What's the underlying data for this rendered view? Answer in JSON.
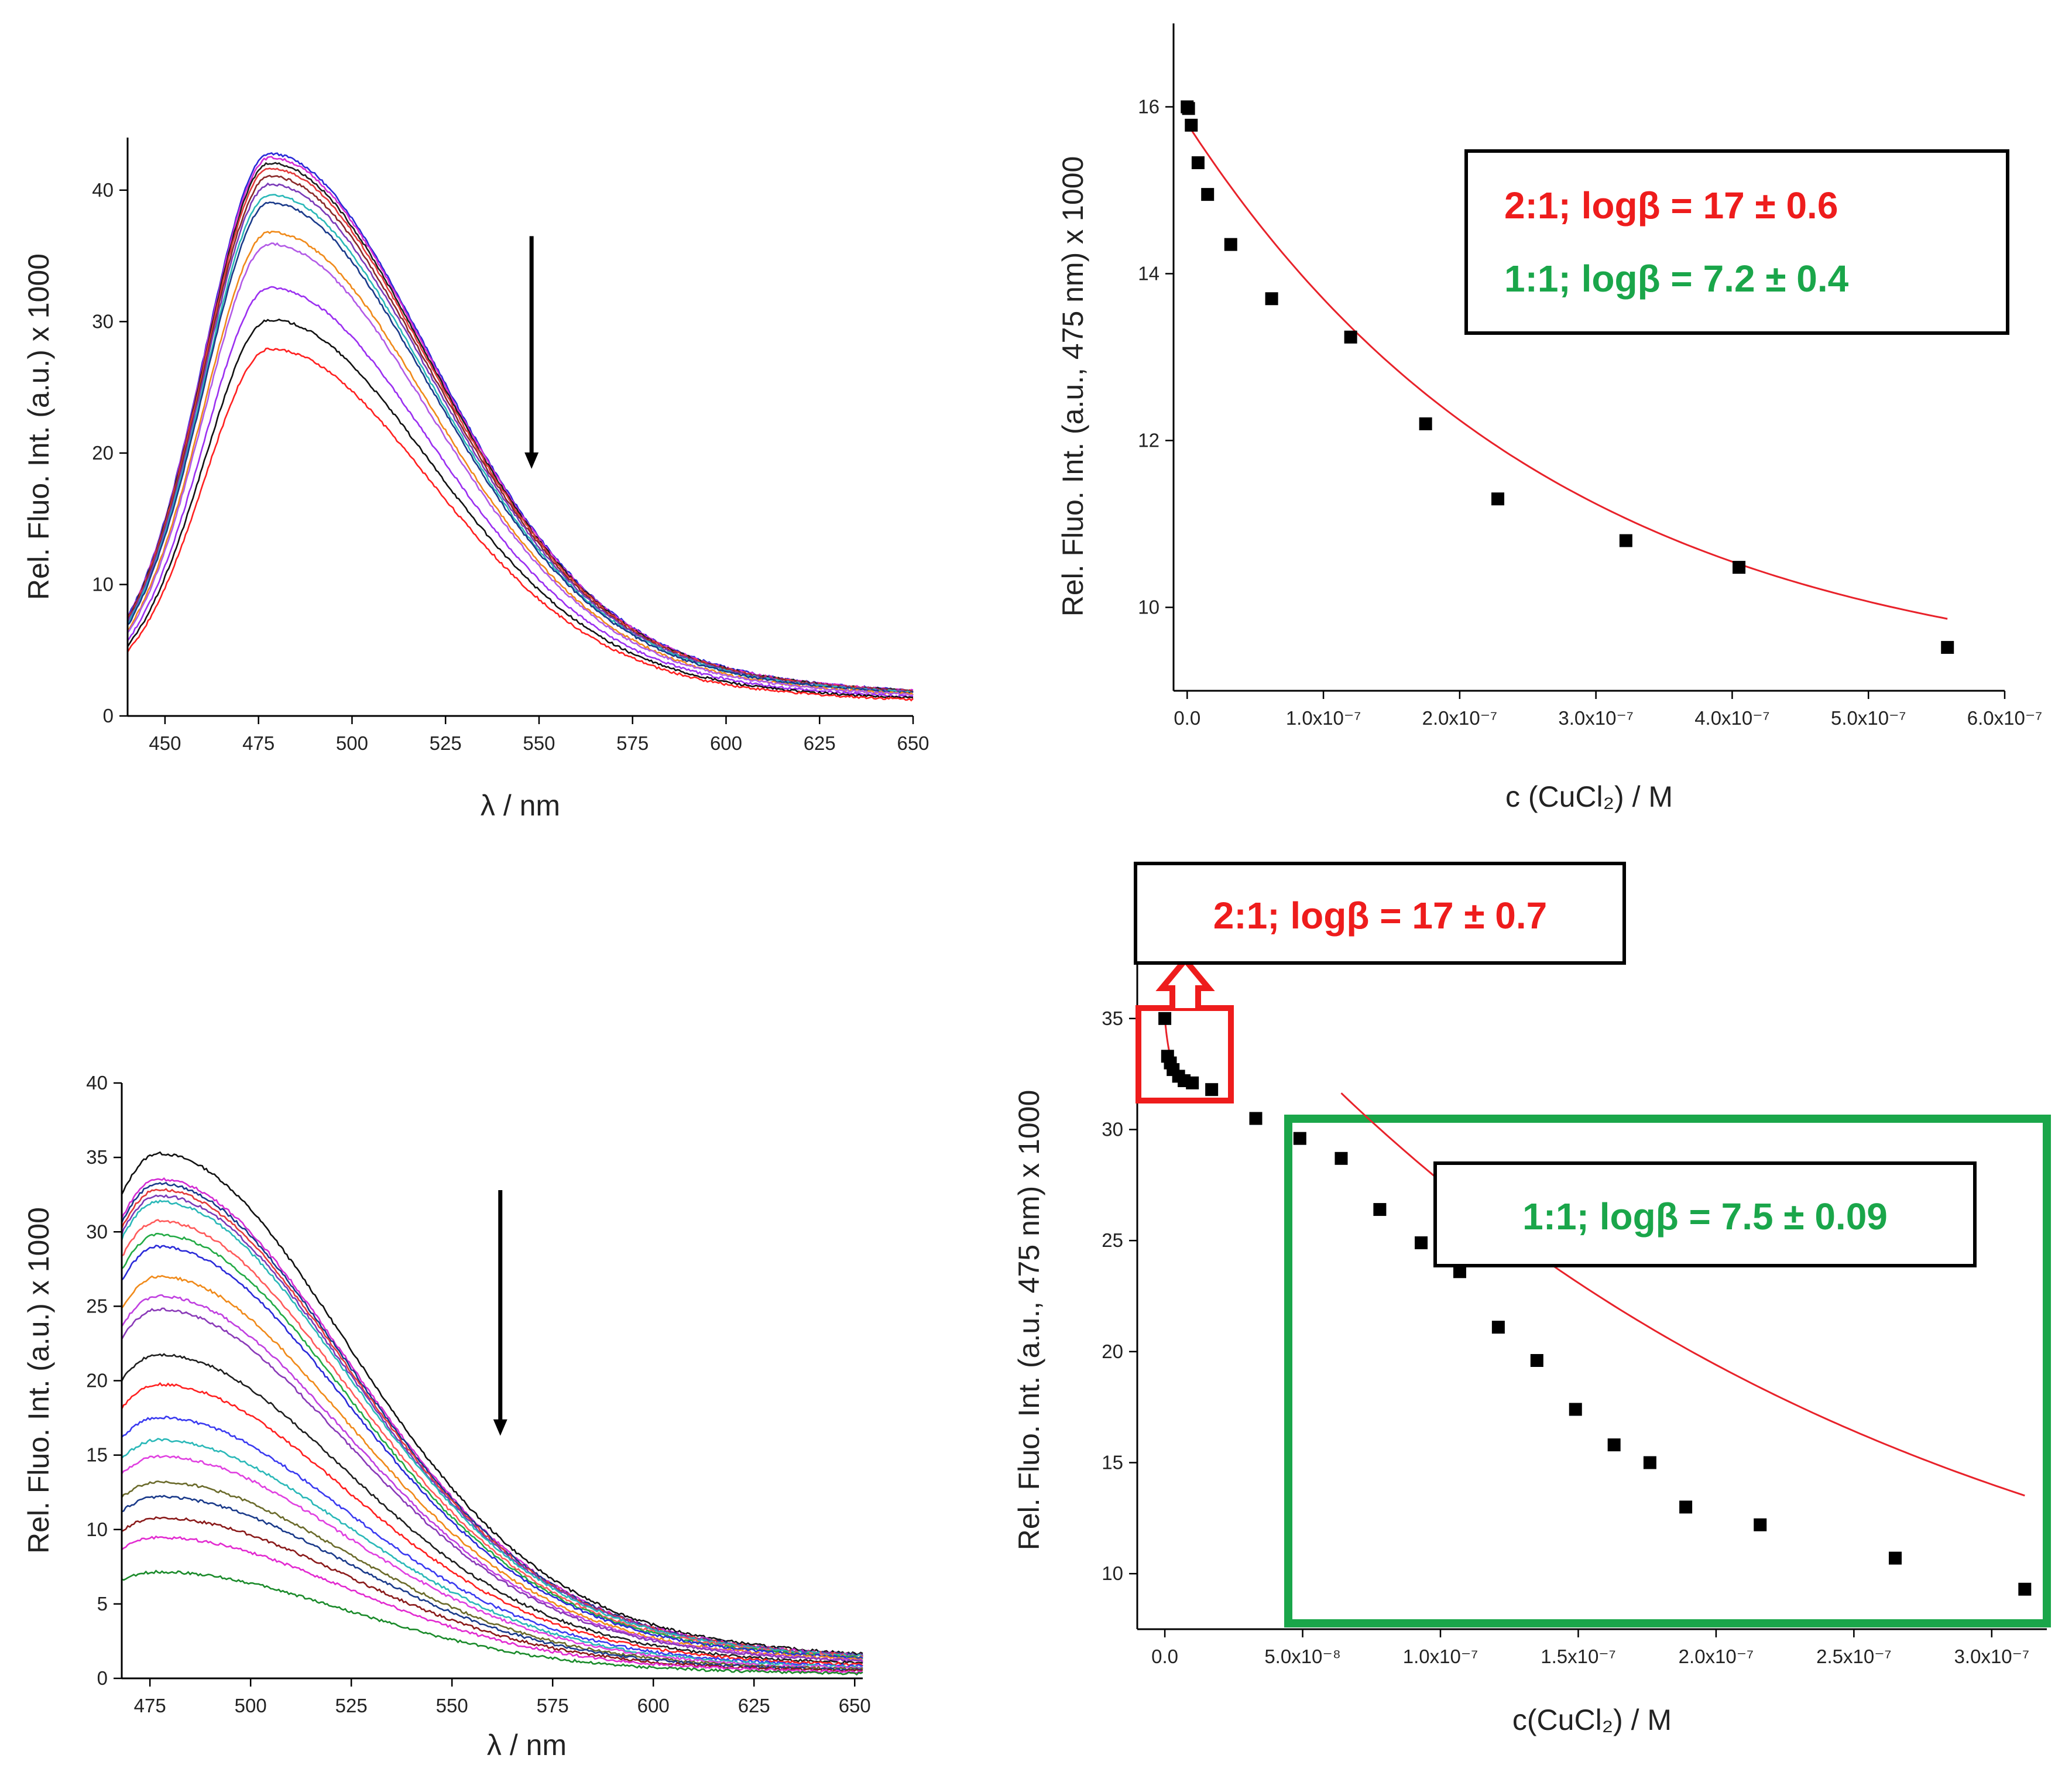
{
  "chart_data": [
    {
      "id": "top-left-spectra",
      "type": "line",
      "title": "",
      "xlabel": "λ / nm",
      "ylabel": "Rel. Fluo. Int. (a.u.) x 1000",
      "xlim": [
        440,
        650
      ],
      "ylim": [
        0,
        44
      ],
      "xticks": [
        450,
        475,
        500,
        525,
        550,
        575,
        600,
        625,
        650
      ],
      "yticks": [
        0,
        10,
        20,
        30,
        40
      ],
      "grid": false,
      "legend": "none",
      "arrow": {
        "x": 548,
        "y_from": 36.5,
        "y_to": 18.8,
        "direction": "down"
      },
      "spectrum_model": {
        "peak_x": 478,
        "left_width": 18,
        "right_width": 44,
        "tail": 0.45
      },
      "series": [
        {
          "peak": 42.3,
          "color": "#2a2ad8"
        },
        {
          "peak": 42.0,
          "color": "#d42bd4"
        },
        {
          "peak": 41.6,
          "color": "#1e1e1e"
        },
        {
          "peak": 41.2,
          "color": "#e33a3a"
        },
        {
          "peak": 40.6,
          "color": "#8a2a2a"
        },
        {
          "peak": 40.0,
          "color": "#7a3ab8"
        },
        {
          "peak": 39.2,
          "color": "#2ab8b8"
        },
        {
          "peak": 38.6,
          "color": "#1a3a8a"
        },
        {
          "peak": 36.4,
          "color": "#f08a1a"
        },
        {
          "peak": 35.5,
          "color": "#b25ae6"
        },
        {
          "peak": 32.2,
          "color": "#9b2ff0"
        },
        {
          "peak": 29.8,
          "color": "#111111"
        },
        {
          "peak": 27.6,
          "color": "#ff2020"
        }
      ]
    },
    {
      "id": "top-right-titration",
      "type": "scatter",
      "title": "",
      "xlabel": "c (CuCl₂) / M",
      "ylabel": "Rel. Fluo. Int. (a.u., 475 nm) x 1000",
      "xlim": [
        -1e-08,
        6e-07
      ],
      "ylim": [
        9,
        17
      ],
      "xticks": [
        "0.0",
        "1.0x10⁻⁷",
        "2.0x10⁻⁷",
        "3.0x10⁻⁷",
        "4.0x10⁻⁷",
        "5.0x10⁻⁷",
        "6.0x10⁻⁷"
      ],
      "xtick_values": [
        0,
        1e-07,
        2e-07,
        3e-07,
        4e-07,
        5e-07,
        6e-07
      ],
      "yticks": [
        10,
        12,
        14,
        16
      ],
      "grid": false,
      "points": [
        {
          "x": 0.0,
          "y": 16.0
        },
        {
          "x": 1e-09,
          "y": 15.98
        },
        {
          "x": 3e-09,
          "y": 15.78
        },
        {
          "x": 8e-09,
          "y": 15.33
        },
        {
          "x": 1.5e-08,
          "y": 14.95
        },
        {
          "x": 3.2e-08,
          "y": 14.35
        },
        {
          "x": 6.2e-08,
          "y": 13.7
        },
        {
          "x": 1.2e-07,
          "y": 13.24
        },
        {
          "x": 1.75e-07,
          "y": 12.2
        },
        {
          "x": 2.28e-07,
          "y": 11.3
        },
        {
          "x": 3.22e-07,
          "y": 10.8
        },
        {
          "x": 4.05e-07,
          "y": 10.48
        },
        {
          "x": 5.58e-07,
          "y": 9.52
        }
      ],
      "fit": {
        "color": "#e8222a",
        "x_from": 0.0,
        "x_to": 5.58e-07,
        "a": 9.0,
        "b": 6.8,
        "k": 3700000.0
      },
      "annotations": [
        {
          "text": "2:1; logβ = 17 ± 0.6",
          "color": "#ee1c1c"
        },
        {
          "text": "1:1; logβ = 7.2 ± 0.4",
          "color": "#1aa64a"
        }
      ]
    },
    {
      "id": "bottom-left-spectra",
      "type": "line",
      "title": "",
      "xlabel": "λ / nm",
      "ylabel": "Rel. Fluo. Int. (a.u.) x 1000",
      "xlim": [
        468,
        652
      ],
      "ylim": [
        0,
        40
      ],
      "xticks": [
        475,
        500,
        525,
        550,
        575,
        600,
        625,
        650
      ],
      "yticks": [
        0,
        5,
        10,
        15,
        20,
        25,
        30,
        35,
        40
      ],
      "grid": false,
      "legend": "none",
      "arrow": {
        "x": 562,
        "y_from": 32.8,
        "y_to": 16.3,
        "direction": "down"
      },
      "spectrum_model": {
        "peak_x": 477,
        "left_width": 22,
        "right_width": 48,
        "tail": 0.3
      },
      "series": [
        {
          "peak": 35.0,
          "color": "#111111"
        },
        {
          "peak": 33.3,
          "color": "#d42bd4"
        },
        {
          "peak": 33.0,
          "color": "#1a3a8a"
        },
        {
          "peak": 32.6,
          "color": "#e33a3a"
        },
        {
          "peak": 32.2,
          "color": "#7a3ab8"
        },
        {
          "peak": 31.8,
          "color": "#2ab8b8"
        },
        {
          "peak": 30.5,
          "color": "#ff5a5a"
        },
        {
          "peak": 29.6,
          "color": "#22aa44"
        },
        {
          "peak": 28.8,
          "color": "#2a2ad8"
        },
        {
          "peak": 26.8,
          "color": "#f08a1a"
        },
        {
          "peak": 25.5,
          "color": "#c040e0"
        },
        {
          "peak": 24.6,
          "color": "#8a3ab8"
        },
        {
          "peak": 21.6,
          "color": "#1e1e1e"
        },
        {
          "peak": 19.6,
          "color": "#ff2020"
        },
        {
          "peak": 17.4,
          "color": "#3a3af0"
        },
        {
          "peak": 15.9,
          "color": "#2ab8b8"
        },
        {
          "peak": 14.8,
          "color": "#e040e0"
        },
        {
          "peak": 13.1,
          "color": "#6a6a2a"
        },
        {
          "peak": 12.1,
          "color": "#1a3a8a"
        },
        {
          "peak": 10.7,
          "color": "#8a1a1a"
        },
        {
          "peak": 9.4,
          "color": "#e22ad0"
        },
        {
          "peak": 7.1,
          "color": "#1a8a2a"
        }
      ]
    },
    {
      "id": "bottom-right-titration",
      "type": "scatter",
      "title": "",
      "xlabel": "c(CuCl₂) / M",
      "ylabel": "Rel. Fluo. Int. (a.u., 475 nm) x 1000",
      "xlim": [
        -1e-08,
        3.2e-07
      ],
      "ylim": [
        7.5,
        37.5
      ],
      "xticks": [
        "0.0",
        "5.0x10⁻⁸",
        "1.0x10⁻⁷",
        "1.5x10⁻⁷",
        "2.0x10⁻⁷",
        "2.5x10⁻⁷",
        "3.0x10⁻⁷"
      ],
      "xtick_values": [
        0,
        5e-08,
        1e-07,
        1.5e-07,
        2e-07,
        2.5e-07,
        3e-07
      ],
      "yticks": [
        10,
        15,
        20,
        25,
        30,
        35
      ],
      "grid": false,
      "points": [
        {
          "x": 0.0,
          "y": 35.0
        },
        {
          "x": 1e-09,
          "y": 33.3
        },
        {
          "x": 2e-09,
          "y": 33.0
        },
        {
          "x": 3e-09,
          "y": 32.7
        },
        {
          "x": 5e-09,
          "y": 32.4
        },
        {
          "x": 7e-09,
          "y": 32.2
        },
        {
          "x": 1e-08,
          "y": 32.1
        },
        {
          "x": 1.7e-08,
          "y": 31.8
        },
        {
          "x": 3.3e-08,
          "y": 30.5
        },
        {
          "x": 4.9e-08,
          "y": 29.6
        },
        {
          "x": 6.4e-08,
          "y": 28.7
        },
        {
          "x": 7.8e-08,
          "y": 26.4
        },
        {
          "x": 9.3e-08,
          "y": 24.9
        },
        {
          "x": 1.07e-07,
          "y": 23.6
        },
        {
          "x": 1.21e-07,
          "y": 21.1
        },
        {
          "x": 1.35e-07,
          "y": 19.6
        },
        {
          "x": 1.49e-07,
          "y": 17.4
        },
        {
          "x": 1.63e-07,
          "y": 15.8
        },
        {
          "x": 1.76e-07,
          "y": 15.0
        },
        {
          "x": 1.89e-07,
          "y": 13.0
        },
        {
          "x": 2.16e-07,
          "y": 12.2
        },
        {
          "x": 2.65e-07,
          "y": 10.7
        },
        {
          "x": 3.12e-07,
          "y": 9.3
        }
      ],
      "fit_early": {
        "color": "#e8222a",
        "x_from": 0.0,
        "x_to": 1e-08,
        "a": 32.1,
        "b": 2.9,
        "k": 450000000.0
      },
      "fit": {
        "color": "#e8222a",
        "x_from": 6.4e-08,
        "x_to": 3.12e-07,
        "a": 4.0,
        "b": 36.4,
        "k": 4300000.0
      },
      "annotations": [
        {
          "text": "2:1; logβ = 17 ± 0.7",
          "color": "#ee1c1c"
        },
        {
          "text": "1:1; logβ = 7.5 ± 0.09",
          "color": "#1aa64a"
        }
      ],
      "highlight_colors": {
        "early": "#ee1c1c",
        "late": "#1aa64a"
      }
    }
  ]
}
